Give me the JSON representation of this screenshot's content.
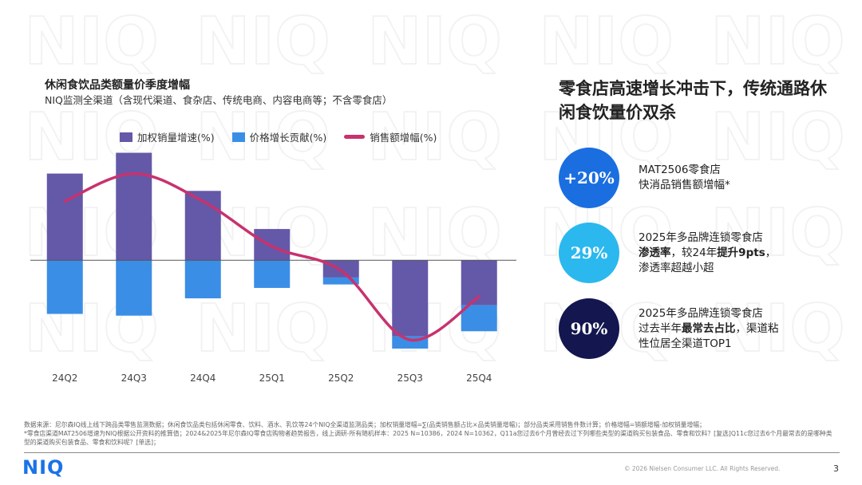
{
  "watermark_text": "NIQ",
  "chart_data": {
    "type": "bar",
    "title": "休闲食饮品类额量价季度增幅",
    "subtitle": "NIQ监测全渠道（含现代渠道、食杂店、传统电商、内容电商等；不含零食店）",
    "categories": [
      "24Q2",
      "24Q3",
      "24Q4",
      "25Q1",
      "25Q2",
      "25Q3",
      "25Q4"
    ],
    "series": [
      {
        "name": "加权销量增速(%)",
        "type": "bar",
        "color": "#6458a8",
        "values": [
          5.0,
          6.2,
          4.0,
          1.8,
          -1.0,
          -4.4,
          -2.6
        ]
      },
      {
        "name": "价格增长贡献(%)",
        "type": "bar",
        "color": "#3a8ee6",
        "values": [
          -3.1,
          -3.2,
          -2.2,
          -1.6,
          -0.4,
          -0.7,
          -1.5
        ]
      },
      {
        "name": "销售额增幅(%)",
        "type": "line",
        "color": "#c8326e",
        "values": [
          3.4,
          5.0,
          3.4,
          0.8,
          -0.6,
          -4.6,
          -2.1
        ]
      }
    ],
    "ylim": [
      -5.7,
      6.5
    ],
    "grid": false,
    "legend_position": "top"
  },
  "headline": "零食店高速增长冲击下，传统通路休闲食饮量价双杀",
  "kpis": [
    {
      "value": "+20%",
      "color": "#1a6ee0",
      "line1": "MAT2506零食店",
      "line2": "快消品销售额增幅*"
    },
    {
      "value": "29%",
      "color": "#2bb8ee",
      "line1": "2025年多品牌连锁零食店",
      "line2_bold": "渗透率",
      "line2_rest": "，较24年",
      "line2_bold2": "提升9pts",
      "line2_end": "，",
      "line3": "渗透率超越小超"
    },
    {
      "value": "90%",
      "color": "#14164f",
      "line1": "2025年多品牌连锁零食店",
      "line2_pre": "过去半年",
      "line2_bold": "最常去占比",
      "line2_rest": "，渠道粘",
      "line3": "性位居全渠道TOP1"
    }
  ],
  "footnote": {
    "line1": "数据来源：尼尔森IQ线上线下跨品类零售监测数据；休闲食饮品类包括休闲零食、饮料、酒水、乳饮等24个NIQ全渠道监测品类；加权销量增幅=∑(品类销售额占比×品类销量增幅)；部分品类采用销售件数计算；价格增幅=销额增幅-加权销量增幅；",
    "line2": "*零食店渠道MAT2506增速为NIQ根据公开资料的推算值；2024&2025年尼尔森IQ零食店购物者趋势报告，线上调研-所有随机样本：2025 N=10386，2024 N=10362，Q11a您过去6个月曾经去过下列哪些类型的渠道购买包装食品、零食和饮料？[复选]Q11c您过去6个月最常去的是哪种类型的渠道购买包装食品、零食和饮料呢？[单选]；"
  },
  "footer": {
    "logo": "NIQ",
    "copyright": "© 2026 Nielsen Consumer LLC. All Rights Reserved.",
    "page_number": "3"
  }
}
